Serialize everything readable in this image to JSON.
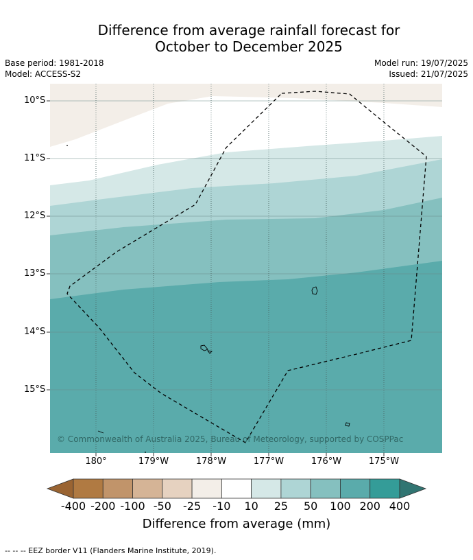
{
  "title": {
    "line1": "Difference from average rainfall forecast for",
    "line2": "October to December 2025"
  },
  "meta": {
    "base_period": "Base period: 1981-2018",
    "model": "Model: ACCESS-S2",
    "model_run": "Model run: 19/07/2025",
    "issued": "Issued: 21/07/2025"
  },
  "map": {
    "lat_labels": [
      "10°S",
      "11°S",
      "12°S",
      "13°S",
      "14°S",
      "15°S"
    ],
    "lon_labels": [
      "180°",
      "179°W",
      "178°W",
      "177°W",
      "176°W",
      "175°W"
    ],
    "copyright": "© Commonwealth of Australia 2025, Bureau of Meteorology, supported by COSPPac",
    "colors": {
      "band_m25_m10": "#f3eee8",
      "band_m10_10": "#ffffff",
      "band_10_25": "#d5e8e7",
      "band_25_50": "#aed5d5",
      "band_50_100": "#85c0bf",
      "band_100_200": "#5aabab"
    }
  },
  "colorbar": {
    "labels": [
      "-400",
      "-200",
      "-100",
      "-50",
      "-25",
      "-10",
      "10",
      "25",
      "50",
      "100",
      "200",
      "400"
    ],
    "colors": [
      "#9a6432",
      "#b07a42",
      "#c1946a",
      "#d5b496",
      "#e6d2c0",
      "#f3eee8",
      "#ffffff",
      "#d5e8e7",
      "#aed5d5",
      "#85c0bf",
      "#5aabab",
      "#349c98",
      "#317572"
    ],
    "title": "Difference from average (mm)"
  },
  "footnote": "--  --  -- EEZ border V11 (Flanders Marine Institute, 2019)."
}
